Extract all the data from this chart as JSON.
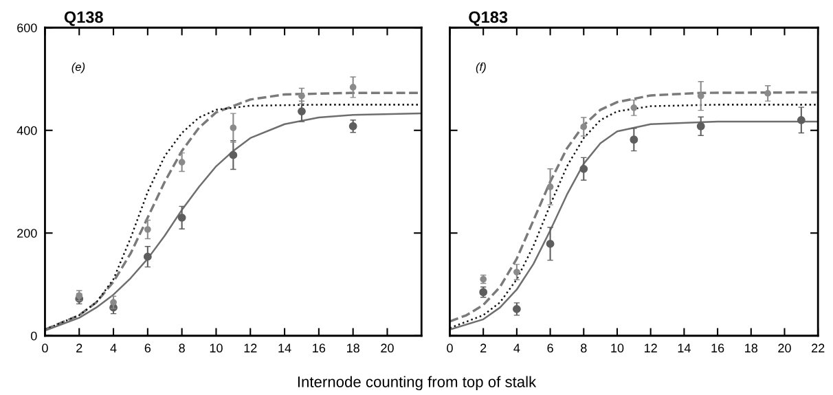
{
  "chart_data": [
    {
      "type": "line",
      "title": "Q138",
      "xlabel": "Internode counting from top of stalk",
      "annotations": [
        "(e)"
      ],
      "xlim": [
        0,
        22
      ],
      "xticks": [
        0,
        2,
        4,
        6,
        8,
        10,
        12,
        14,
        16,
        18,
        20
      ],
      "ylim": [
        0,
        600
      ],
      "yticks": [
        0,
        200,
        400,
        600
      ],
      "grid": false,
      "legend": false,
      "series": [
        {
          "type": "scatter",
          "marker": "circle",
          "color": "#8a8a8a",
          "x": [
            2,
            4,
            6,
            8,
            11,
            15,
            18
          ],
          "values": [
            78,
            65,
            207,
            338,
            405,
            467,
            484
          ],
          "errors": [
            10,
            12,
            18,
            18,
            28,
            15,
            20
          ]
        },
        {
          "type": "scatter",
          "marker": "circle",
          "color": "#5e5e5e",
          "x": [
            2,
            4,
            6,
            8,
            11,
            15,
            18
          ],
          "values": [
            72,
            55,
            154,
            230,
            352,
            437,
            408
          ],
          "errors": [
            10,
            12,
            20,
            22,
            28,
            20,
            12
          ]
        },
        {
          "type": "line",
          "line_style": "dashed",
          "color": "#7a7a7a",
          "x": [
            0,
            2,
            3,
            4,
            5,
            6,
            7,
            8,
            9,
            10,
            12,
            14,
            18,
            22
          ],
          "values": [
            12,
            40,
            65,
            105,
            160,
            230,
            300,
            360,
            405,
            435,
            460,
            470,
            473,
            473
          ]
        },
        {
          "type": "line",
          "line_style": "dotted",
          "color": "#111111",
          "x": [
            0,
            2,
            3,
            4,
            5,
            6,
            7,
            8,
            9,
            10,
            12,
            16,
            22
          ],
          "values": [
            12,
            40,
            65,
            110,
            190,
            280,
            350,
            395,
            425,
            440,
            448,
            450,
            450
          ]
        },
        {
          "type": "line",
          "line_style": "solid",
          "color": "#6e6e6e",
          "x": [
            0,
            2,
            3,
            4,
            5,
            6,
            7,
            8,
            9,
            10,
            11,
            12,
            14,
            16,
            18,
            22
          ],
          "values": [
            10,
            35,
            55,
            80,
            112,
            150,
            195,
            245,
            290,
            330,
            360,
            385,
            412,
            425,
            430,
            433
          ]
        }
      ]
    },
    {
      "type": "line",
      "title": "Q183",
      "annotations": [
        "(f)"
      ],
      "xlim": [
        0,
        22
      ],
      "xticks": [
        0,
        2,
        4,
        6,
        8,
        10,
        12,
        14,
        16,
        18,
        20,
        22
      ],
      "ylim": [
        0,
        600
      ],
      "yticks": [
        0,
        200,
        400,
        600
      ],
      "tick_labels": "x",
      "grid": false,
      "legend": false,
      "series": [
        {
          "type": "scatter",
          "marker": "circle",
          "color": "#8a8a8a",
          "x": [
            2,
            4,
            6,
            8,
            11,
            15,
            19
          ],
          "values": [
            110,
            124,
            290,
            407,
            444,
            467,
            472
          ],
          "errors": [
            8,
            15,
            35,
            18,
            15,
            28,
            15
          ]
        },
        {
          "type": "scatter",
          "marker": "circle",
          "color": "#5e5e5e",
          "x": [
            2,
            4,
            6,
            8,
            11,
            15,
            21
          ],
          "values": [
            85,
            52,
            179,
            325,
            382,
            408,
            420
          ],
          "errors": [
            10,
            12,
            32,
            22,
            22,
            18,
            25
          ]
        },
        {
          "type": "line",
          "line_style": "dashed",
          "color": "#7a7a7a",
          "x": [
            0,
            1,
            2,
            3,
            4,
            5,
            6,
            7,
            8,
            9,
            10,
            12,
            15,
            22
          ],
          "values": [
            28,
            40,
            60,
            95,
            150,
            225,
            300,
            365,
            410,
            440,
            455,
            468,
            473,
            474
          ]
        },
        {
          "type": "line",
          "line_style": "dotted",
          "color": "#111111",
          "x": [
            0,
            2,
            3,
            4,
            5,
            6,
            7,
            8,
            9,
            10,
            12,
            16,
            22
          ],
          "values": [
            15,
            40,
            65,
            110,
            175,
            255,
            330,
            385,
            420,
            437,
            447,
            450,
            450
          ]
        },
        {
          "type": "line",
          "line_style": "solid",
          "color": "#6e6e6e",
          "x": [
            0,
            2,
            3,
            4,
            5,
            6,
            7,
            8,
            9,
            10,
            12,
            16,
            22
          ],
          "values": [
            12,
            32,
            55,
            90,
            140,
            205,
            275,
            335,
            375,
            398,
            412,
            417,
            417
          ]
        }
      ]
    }
  ]
}
